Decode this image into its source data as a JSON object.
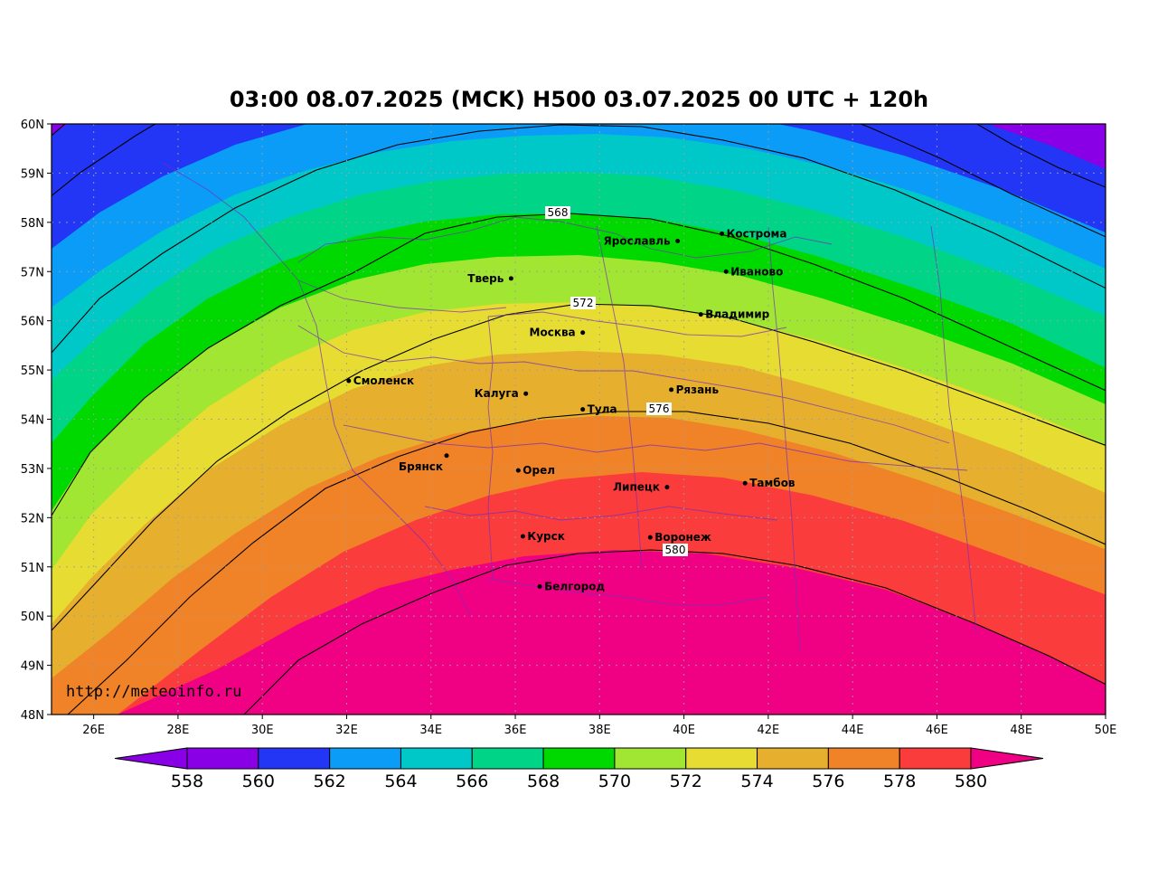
{
  "title": "03:00 08.07.2025 (MCK) H500  03.07.2025 00 UTC + 120h",
  "watermark": "http://meteoinfo.ru",
  "map": {
    "lat_range": [
      48,
      60
    ],
    "lon_range": [
      25,
      50
    ],
    "lat_ticks": [
      {
        "value": 48,
        "label": "48N"
      },
      {
        "value": 49,
        "label": "49N"
      },
      {
        "value": 50,
        "label": "50N"
      },
      {
        "value": 51,
        "label": "51N"
      },
      {
        "value": 52,
        "label": "52N"
      },
      {
        "value": 53,
        "label": "53N"
      },
      {
        "value": 54,
        "label": "54N"
      },
      {
        "value": 55,
        "label": "55N"
      },
      {
        "value": 56,
        "label": "56N"
      },
      {
        "value": 57,
        "label": "57N"
      },
      {
        "value": 58,
        "label": "58N"
      },
      {
        "value": 59,
        "label": "59N"
      },
      {
        "value": 60,
        "label": "60N"
      }
    ],
    "lon_ticks": [
      {
        "value": 26,
        "label": "26E"
      },
      {
        "value": 28,
        "label": "28E"
      },
      {
        "value": 30,
        "label": "30E"
      },
      {
        "value": 32,
        "label": "32E"
      },
      {
        "value": 34,
        "label": "34E"
      },
      {
        "value": 36,
        "label": "36E"
      },
      {
        "value": 38,
        "label": "38E"
      },
      {
        "value": 40,
        "label": "40E"
      },
      {
        "value": 42,
        "label": "42E"
      },
      {
        "value": 44,
        "label": "44E"
      },
      {
        "value": 46,
        "label": "46E"
      },
      {
        "value": 48,
        "label": "48E"
      },
      {
        "value": 50,
        "label": "50E"
      }
    ],
    "cities": [
      {
        "name": "Кострома",
        "lon": 40.9,
        "lat": 57.77,
        "side": "right"
      },
      {
        "name": "Ярославль",
        "lon": 39.85,
        "lat": 57.62,
        "side": "left"
      },
      {
        "name": "Иваново",
        "lon": 41.0,
        "lat": 57.0,
        "side": "right"
      },
      {
        "name": "Тверь",
        "lon": 35.9,
        "lat": 56.86,
        "side": "left"
      },
      {
        "name": "Владимир",
        "lon": 40.4,
        "lat": 56.13,
        "side": "right"
      },
      {
        "name": "Москва",
        "lon": 37.6,
        "lat": 55.76,
        "side": "left"
      },
      {
        "name": "Смоленск",
        "lon": 32.05,
        "lat": 54.78,
        "side": "right"
      },
      {
        "name": "Рязань",
        "lon": 39.7,
        "lat": 54.6,
        "side": "right"
      },
      {
        "name": "Калуга",
        "lon": 36.25,
        "lat": 54.52,
        "side": "left"
      },
      {
        "name": "Тула",
        "lon": 37.6,
        "lat": 54.2,
        "side": "right"
      },
      {
        "name": "Брянск",
        "lon": 34.37,
        "lat": 53.26,
        "side": "leftbelow"
      },
      {
        "name": "Орел",
        "lon": 36.07,
        "lat": 52.96,
        "side": "right"
      },
      {
        "name": "Липецк",
        "lon": 39.6,
        "lat": 52.62,
        "side": "left"
      },
      {
        "name": "Тамбов",
        "lon": 41.45,
        "lat": 52.7,
        "side": "right"
      },
      {
        "name": "Курск",
        "lon": 36.18,
        "lat": 51.62,
        "side": "right"
      },
      {
        "name": "Воронеж",
        "lon": 39.2,
        "lat": 51.6,
        "side": "right"
      },
      {
        "name": "Белгород",
        "lon": 36.58,
        "lat": 50.6,
        "side": "right"
      }
    ],
    "contour_labels": [
      "568",
      "572",
      "576",
      "580"
    ]
  },
  "colorbar": {
    "ticks": [
      "558",
      "560",
      "562",
      "564",
      "566",
      "568",
      "570",
      "572",
      "574",
      "576",
      "578",
      "580"
    ],
    "colors": [
      "#8a00e6",
      "#8a00e6",
      "#2436f5",
      "#0a9cf7",
      "#00c8c8",
      "#00d487",
      "#00d900",
      "#a0e632",
      "#e6dc32",
      "#e6af2d",
      "#f08228",
      "#fa3c3c",
      "#f00082"
    ]
  }
}
